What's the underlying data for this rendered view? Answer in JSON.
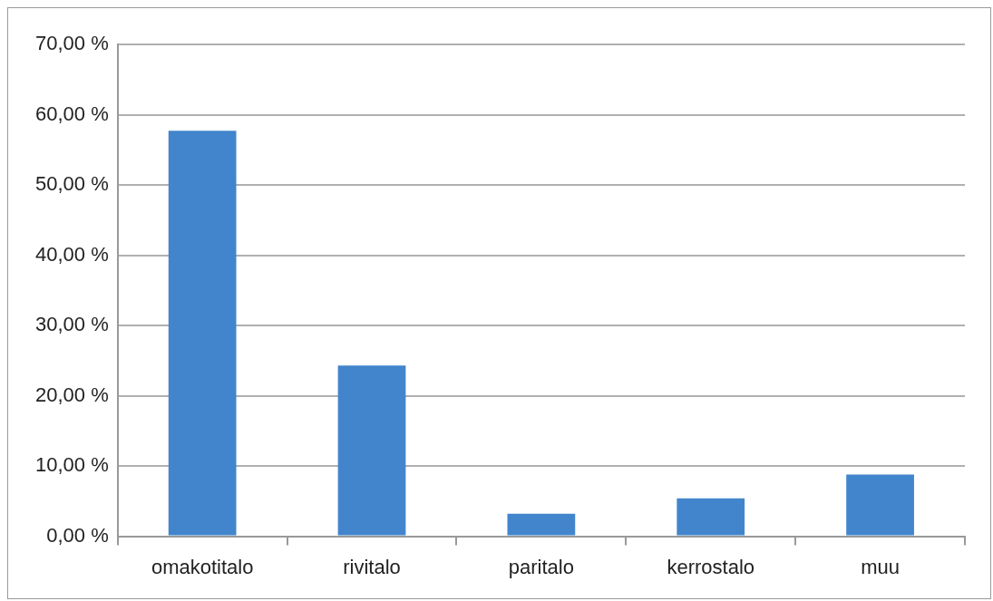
{
  "chart_data": {
    "type": "bar",
    "categories": [
      "omakotitalo",
      "rivitalo",
      "paritalo",
      "kerrostalo",
      "muu"
    ],
    "values": [
      57.7,
      24.3,
      3.2,
      5.4,
      8.8
    ],
    "color": "#4285cc",
    "ylim": [
      0,
      70
    ],
    "yticks": [
      {
        "value": 0,
        "label": "0,00 %"
      },
      {
        "value": 10,
        "label": "10,00 %"
      },
      {
        "value": 20,
        "label": "20,00 %"
      },
      {
        "value": 30,
        "label": "30,00 %"
      },
      {
        "value": 40,
        "label": "40,00 %"
      },
      {
        "value": 50,
        "label": "50,00 %"
      },
      {
        "value": 60,
        "label": "60,00 %"
      },
      {
        "value": 70,
        "label": "70,00 %"
      }
    ],
    "grid": "y",
    "legend": false
  }
}
